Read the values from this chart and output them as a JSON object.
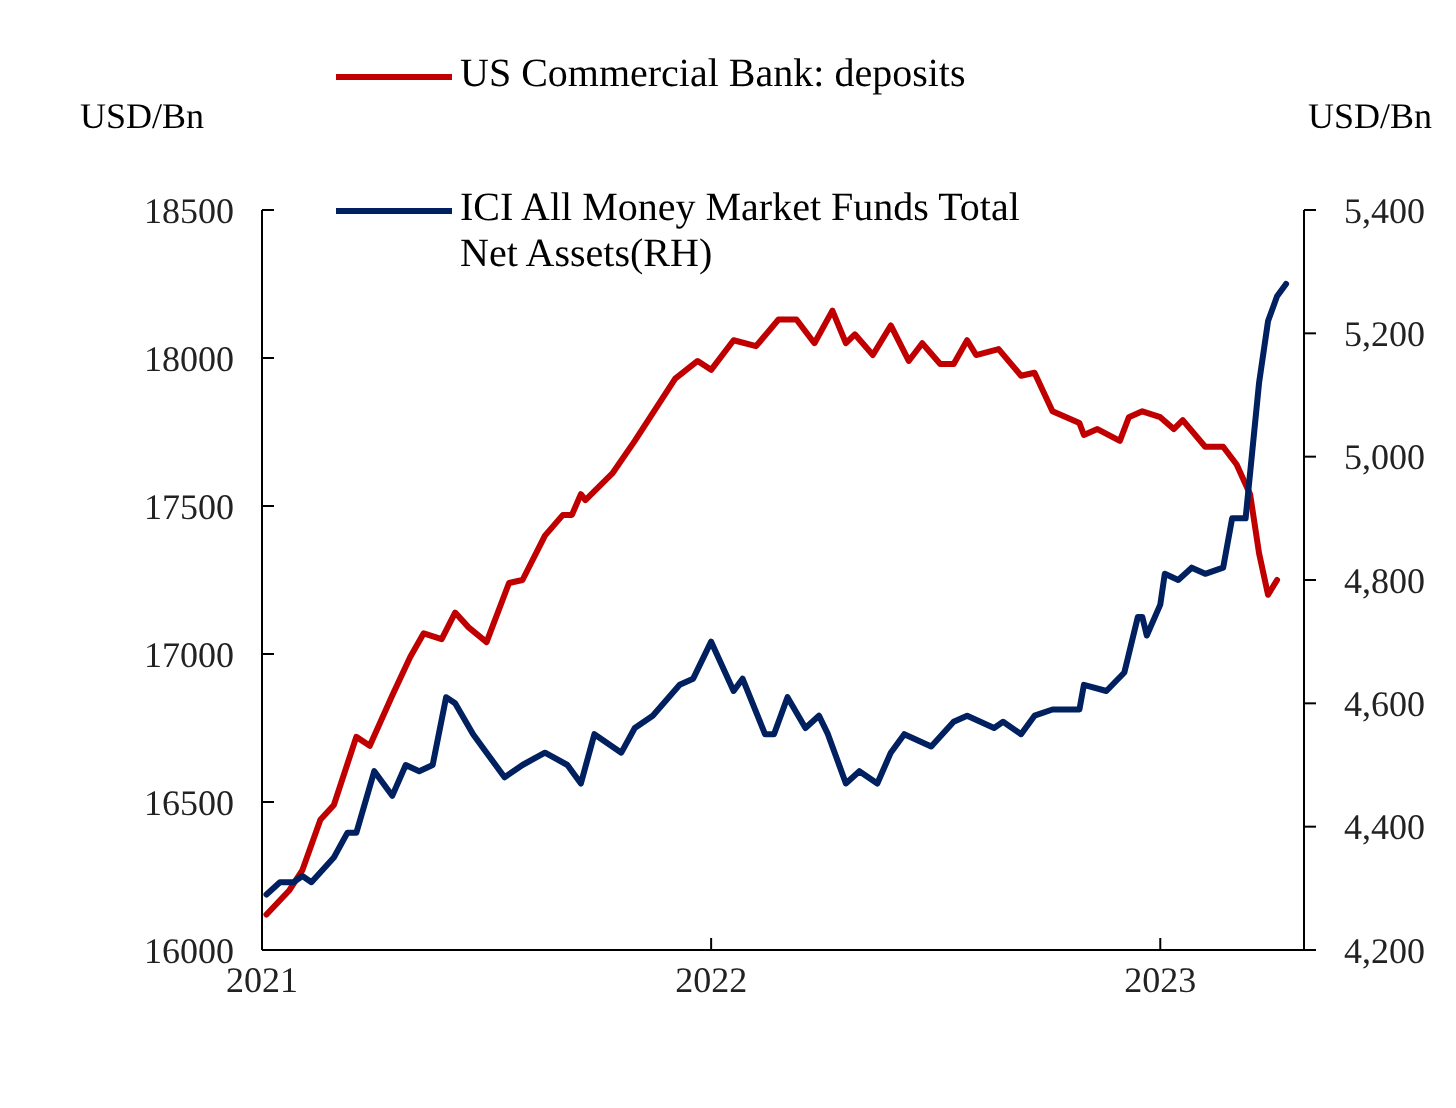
{
  "chart_data": {
    "type": "line",
    "ylabel": "USD/Bn",
    "y2label": "USD/Bn",
    "xlim": [
      2021,
      2023.32
    ],
    "xticks": [
      2021,
      2022,
      2023
    ],
    "ylim": [
      16000,
      18500
    ],
    "yticks": [
      16000,
      16500,
      17000,
      17500,
      18000,
      18500
    ],
    "y2lim": [
      4200,
      5400
    ],
    "y2ticks": [
      {
        "value": 4200,
        "label": "4,200"
      },
      {
        "value": 4400,
        "label": "4,400"
      },
      {
        "value": 4600,
        "label": "4,600"
      },
      {
        "value": 4800,
        "label": "4,800"
      },
      {
        "value": 5000,
        "label": "5,000"
      },
      {
        "value": 5200,
        "label": "5,200"
      },
      {
        "value": 5400,
        "label": "5,400"
      }
    ],
    "legend": "top",
    "marker": "none",
    "line_style": "solid",
    "series": [
      {
        "name": "US Commercial Bank: deposits",
        "color": "#c00000",
        "x": [
          2021.01,
          2021.06,
          2021.09,
          2021.13,
          2021.16,
          2021.21,
          2021.24,
          2021.29,
          2021.33,
          2021.36,
          2021.4,
          2021.43,
          2021.46,
          2021.5,
          2021.55,
          2021.58,
          2021.63,
          2021.67,
          2021.69,
          2021.71,
          2021.72,
          2021.78,
          2021.83,
          2021.89,
          2021.92,
          2021.97,
          2022.0,
          2022.05,
          2022.1,
          2022.15,
          2022.19,
          2022.23,
          2022.27,
          2022.3,
          2022.32,
          2022.36,
          2022.4,
          2022.44,
          2022.47,
          2022.51,
          2022.54,
          2022.57,
          2022.59,
          2022.64,
          2022.69,
          2022.72,
          2022.76,
          2022.82,
          2022.83,
          2022.86,
          2022.91,
          2022.93,
          2022.96,
          2023.0,
          2023.03,
          2023.05,
          2023.1,
          2023.14,
          2023.17,
          2023.2,
          2023.22,
          2023.24,
          2023.26
        ],
        "values": [
          16120,
          16200,
          16270,
          16440,
          16490,
          16720,
          16690,
          16860,
          16990,
          17070,
          17050,
          17140,
          17090,
          17040,
          17240,
          17250,
          17400,
          17470,
          17470,
          17540,
          17520,
          17610,
          17720,
          17860,
          17930,
          17990,
          17960,
          18060,
          18040,
          18130,
          18130,
          18050,
          18160,
          18050,
          18080,
          18010,
          18110,
          17990,
          18050,
          17980,
          17980,
          18060,
          18010,
          18030,
          17940,
          17950,
          17820,
          17780,
          17740,
          17760,
          17720,
          17800,
          17820,
          17800,
          17760,
          17790,
          17700,
          17700,
          17640,
          17540,
          17340,
          17200,
          17250
        ]
      },
      {
        "name": "ICI All Money Market Funds Total Net Assets(RH)",
        "color": "#002060",
        "axis": "y2",
        "x": [
          2021.01,
          2021.04,
          2021.07,
          2021.09,
          2021.11,
          2021.16,
          2021.19,
          2021.21,
          2021.25,
          2021.29,
          2021.32,
          2021.35,
          2021.38,
          2021.41,
          2021.43,
          2021.47,
          2021.5,
          2021.54,
          2021.58,
          2021.63,
          2021.68,
          2021.71,
          2021.74,
          2021.8,
          2021.83,
          2021.87,
          2021.93,
          2021.96,
          2022.0,
          2022.05,
          2022.07,
          2022.12,
          2022.14,
          2022.17,
          2022.21,
          2022.24,
          2022.26,
          2022.3,
          2022.33,
          2022.37,
          2022.4,
          2022.43,
          2022.49,
          2022.54,
          2022.57,
          2022.63,
          2022.65,
          2022.69,
          2022.72,
          2022.76,
          2022.82,
          2022.83,
          2022.88,
          2022.92,
          2022.95,
          2022.96,
          2022.97,
          2023.0,
          2023.01,
          2023.04,
          2023.07,
          2023.1,
          2023.14,
          2023.16,
          2023.19,
          2023.22,
          2023.24,
          2023.26,
          2023.28
        ],
        "values": [
          4290,
          4310,
          4310,
          4320,
          4310,
          4350,
          4390,
          4390,
          4490,
          4450,
          4500,
          4490,
          4500,
          4610,
          4600,
          4550,
          4520,
          4480,
          4500,
          4520,
          4500,
          4470,
          4550,
          4520,
          4560,
          4580,
          4630,
          4640,
          4700,
          4620,
          4640,
          4550,
          4550,
          4610,
          4560,
          4580,
          4550,
          4470,
          4490,
          4470,
          4520,
          4550,
          4530,
          4570,
          4580,
          4560,
          4570,
          4550,
          4580,
          4590,
          4590,
          4630,
          4620,
          4650,
          4740,
          4740,
          4710,
          4760,
          4810,
          4800,
          4820,
          4810,
          4820,
          4900,
          4900,
          5120,
          5220,
          5260,
          5280
        ]
      }
    ]
  }
}
